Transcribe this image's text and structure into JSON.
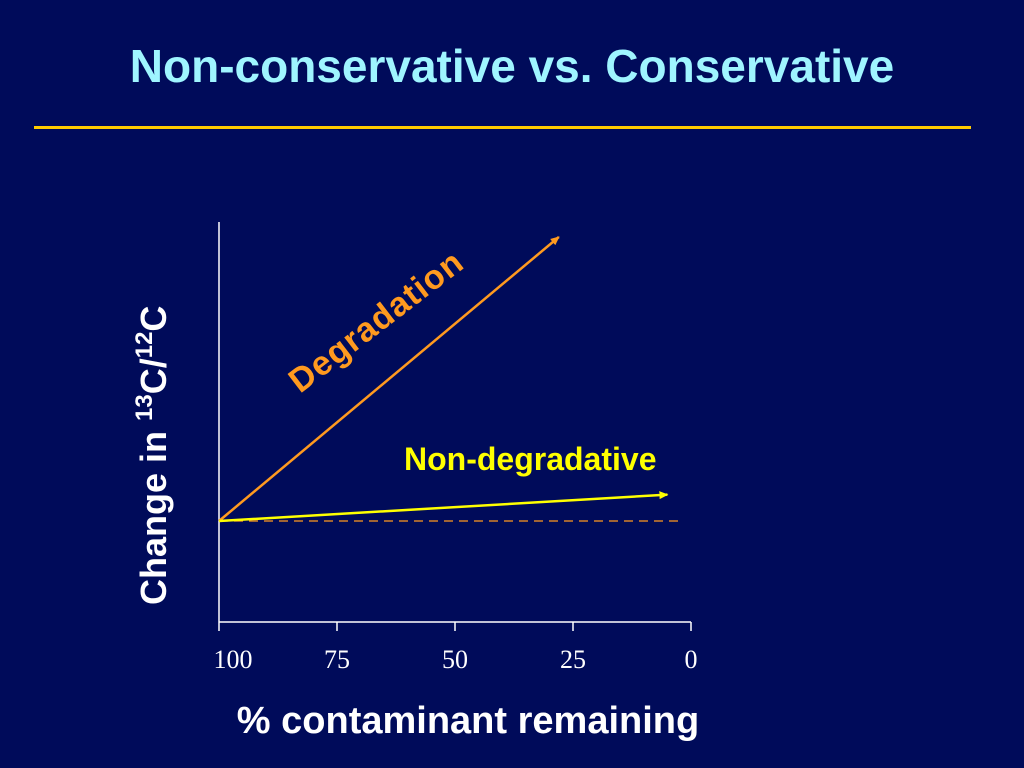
{
  "slide": {
    "title": "Non-conservative vs. Conservative"
  },
  "colors": {
    "background": "#000b5a",
    "title": "#9ff5ff",
    "rule": "#ffcc00",
    "axis": "#ffffff",
    "degradation": "#ff9a1f",
    "non_degradative": "#ffff00"
  },
  "chart_data": {
    "type": "line",
    "xlabel": "% contaminant remaining",
    "ylabel_main": "Change in ",
    "ylabel_iso1": "13",
    "ylabel_iso1_elem": "C/",
    "ylabel_iso2": "12",
    "ylabel_iso2_elem": "C",
    "x_ticks": [
      "100",
      "75",
      "50",
      "25",
      "0"
    ],
    "x_tick_values": [
      100,
      75,
      50,
      25,
      0
    ],
    "xlim": [
      100,
      0
    ],
    "ylim": [
      -1,
      3
    ],
    "grid": false,
    "baseline_y": 0,
    "baseline_dashed": true,
    "series": [
      {
        "name": "Degradation",
        "x": [
          100,
          28
        ],
        "y": [
          0,
          2.8
        ],
        "color": "#ff9a1f",
        "arrow": true
      },
      {
        "name": "Non-degradative",
        "x": [
          100,
          5
        ],
        "y": [
          0,
          0.26
        ],
        "color": "#ffff00",
        "arrow": true
      }
    ]
  }
}
